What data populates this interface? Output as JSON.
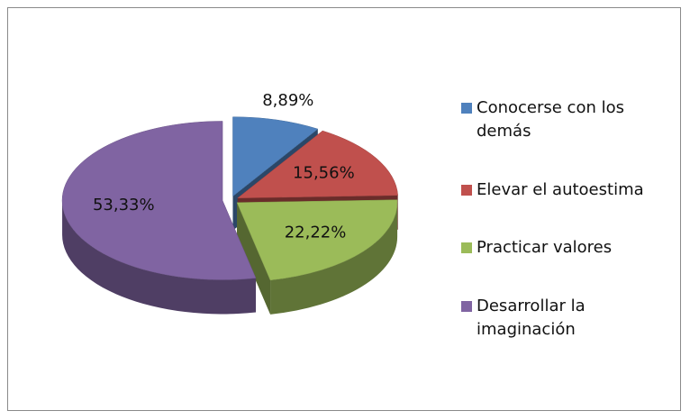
{
  "chart_data": {
    "type": "pie",
    "categories": [
      "Conocerse con los demás",
      "Elevar el autoestima",
      "Practicar valores",
      "Desarrollar la imaginación"
    ],
    "values": [
      8.89,
      15.56,
      22.22,
      53.33
    ],
    "value_labels": [
      "8,89%",
      "15,56%",
      "22,22%",
      "53,33%"
    ],
    "colors": [
      "#4f81bd",
      "#c0504d",
      "#9bbb59",
      "#8064a2"
    ],
    "legend": "right"
  }
}
